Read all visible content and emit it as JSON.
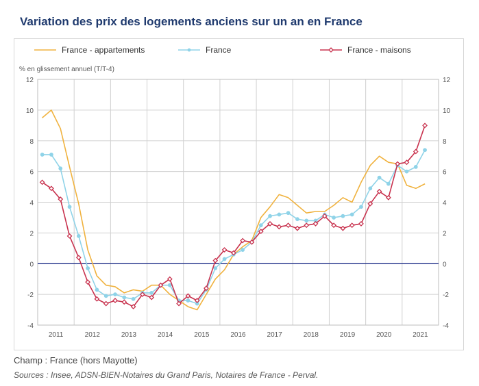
{
  "title": "Variation des prix des logements anciens sur un an en France",
  "note": "Champ : France (hors Mayotte)",
  "sources": "Sources : Insee, ADSN-BIEN-Notaires du Grand Paris, Notaires de France - Perval.",
  "colors": {
    "appartements": "#f0b23e",
    "france": "#8fd3e8",
    "maisons": "#c8324e",
    "zero_line": "#2b3a8f",
    "grid": "#d0d0d0"
  },
  "chart_data": {
    "type": "line",
    "ylabel": "% en glissement annuel (T/T-4)",
    "ylim": [
      -4,
      12
    ],
    "yticks": [
      "-4",
      "-2",
      "0",
      "2",
      "4",
      "6",
      "8",
      "10",
      "12"
    ],
    "y_axis_sides": "left and right",
    "grid": true,
    "legend_position": "top",
    "x_labels": [
      "2011",
      "2012",
      "2013",
      "2014",
      "2015",
      "2016",
      "2017",
      "2018",
      "2019",
      "2020",
      "2021"
    ],
    "x_quarters": [
      "2011-T1",
      "2011-T2",
      "2011-T3",
      "2011-T4",
      "2012-T1",
      "2012-T2",
      "2012-T3",
      "2012-T4",
      "2013-T1",
      "2013-T2",
      "2013-T3",
      "2013-T4",
      "2014-T1",
      "2014-T2",
      "2014-T3",
      "2014-T4",
      "2015-T1",
      "2015-T2",
      "2015-T3",
      "2015-T4",
      "2016-T1",
      "2016-T2",
      "2016-T3",
      "2016-T4",
      "2017-T1",
      "2017-T2",
      "2017-T3",
      "2017-T4",
      "2018-T1",
      "2018-T2",
      "2018-T3",
      "2018-T4",
      "2019-T1",
      "2019-T2",
      "2019-T3",
      "2019-T4",
      "2020-T1",
      "2020-T2",
      "2020-T3",
      "2020-T4",
      "2021-T1",
      "2021-T2",
      "2021-T3"
    ],
    "series": [
      {
        "name": "France - appartements",
        "color_key": "appartements",
        "marker": "none",
        "values": [
          9.5,
          10.0,
          8.8,
          6.3,
          3.9,
          0.9,
          -0.8,
          -1.4,
          -1.5,
          -1.9,
          -1.7,
          -1.8,
          -1.4,
          -1.4,
          -2.0,
          -2.4,
          -2.8,
          -3.0,
          -2.0,
          -1.0,
          -0.4,
          0.6,
          1.1,
          1.5,
          3.0,
          3.7,
          4.5,
          4.3,
          3.8,
          3.3,
          3.4,
          3.4,
          3.8,
          4.3,
          4.0,
          5.3,
          6.4,
          7.0,
          6.6,
          6.5,
          5.1,
          4.9,
          5.2
        ]
      },
      {
        "name": "France",
        "color_key": "france",
        "marker": "dot",
        "values": [
          7.1,
          7.1,
          6.2,
          3.7,
          1.8,
          -0.3,
          -1.7,
          -2.1,
          -2.0,
          -2.2,
          -2.3,
          -1.9,
          -1.9,
          -1.4,
          -1.4,
          -2.4,
          -2.4,
          -2.6,
          -1.7,
          -0.3,
          0.3,
          0.6,
          0.9,
          1.4,
          2.5,
          3.1,
          3.2,
          3.3,
          2.9,
          2.8,
          2.8,
          3.2,
          3.0,
          3.1,
          3.2,
          3.7,
          4.9,
          5.6,
          5.2,
          6.4,
          6.0,
          6.3,
          7.4
        ]
      },
      {
        "name": "France - maisons",
        "color_key": "maisons",
        "marker": "diamond",
        "values": [
          5.3,
          4.9,
          4.2,
          1.8,
          0.4,
          -1.2,
          -2.3,
          -2.6,
          -2.4,
          -2.5,
          -2.8,
          -2.0,
          -2.2,
          -1.4,
          -1.0,
          -2.6,
          -2.1,
          -2.4,
          -1.6,
          0.2,
          0.9,
          0.7,
          1.5,
          1.4,
          2.1,
          2.6,
          2.4,
          2.5,
          2.3,
          2.5,
          2.6,
          3.1,
          2.5,
          2.3,
          2.5,
          2.6,
          3.9,
          4.7,
          4.3,
          6.5,
          6.6,
          7.3,
          9.0
        ]
      }
    ]
  }
}
